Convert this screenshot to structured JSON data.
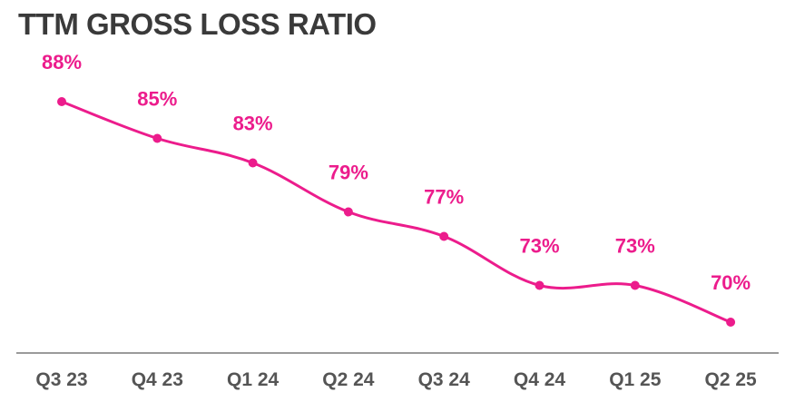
{
  "chart_data": {
    "type": "line",
    "title": "TTM GROSS LOSS RATIO",
    "xlabel": "",
    "ylabel": "",
    "categories": [
      "Q3 23",
      "Q4 23",
      "Q1 24",
      "Q2 24",
      "Q3 24",
      "Q4 24",
      "Q1 25",
      "Q2 25"
    ],
    "series": [
      {
        "values": [
          88,
          85,
          83,
          79,
          77,
          73,
          73,
          70
        ],
        "data_labels": [
          "88%",
          "85%",
          "83%",
          "79%",
          "77%",
          "73%",
          "73%",
          "70%"
        ]
      }
    ],
    "grid": false,
    "legend": "none",
    "line_color": "#EC1C8C",
    "axis_color": "#9a9a9a",
    "tick_color": "#555555",
    "title_color": "#3a3a3a"
  }
}
